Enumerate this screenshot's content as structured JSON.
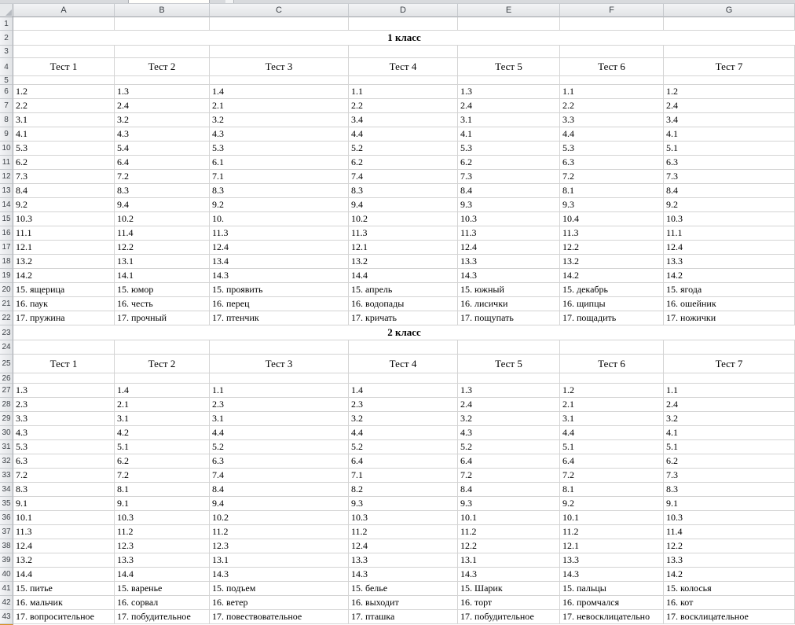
{
  "ui": {
    "selection_orange": "#f0a335",
    "grid_line_color": "#d4d4d4",
    "header_fill": "#e7e9eb"
  },
  "sheet": {
    "column_letters": [
      "A",
      "B",
      "C",
      "D",
      "E",
      "F",
      "G"
    ],
    "visible_rows": "1-43",
    "sections": [
      {
        "title": "1 класс",
        "tests": [
          "Тест 1",
          "Тест 2",
          "Тест 3",
          "Тест 4",
          "Тест 5",
          "Тест 6",
          "Тест 7"
        ],
        "answers": [
          [
            "1.2",
            "2.2",
            "3.1",
            "4.1",
            "5.3",
            "6.2",
            "7.3",
            "8.4",
            "9.2",
            "10.3",
            "11.1",
            "12.1",
            "13.2",
            "14.2",
            "15. ящерица",
            "16. паук",
            "17. пружина"
          ],
          [
            "1.3",
            "2.4",
            "3.2",
            "4.3",
            "5.4",
            "6.4",
            "7.2",
            "8.3",
            "9.4",
            "10.2",
            "11.4",
            "12.2",
            "13.1",
            "14.1",
            "15. юмор",
            "16. честь",
            "17. прочный"
          ],
          [
            "1.4",
            "2.1",
            "3.2",
            "4.3",
            "5.3",
            "6.1",
            "7.1",
            "8.3",
            "9.2",
            "10.",
            "11.3",
            "12.4",
            "13.4",
            "14.3",
            "15. проявить",
            "16. перец",
            "17. птенчик"
          ],
          [
            "1.1",
            "2.2",
            "3.4",
            "4.4",
            "5.2",
            "6.2",
            "7.4",
            "8.3",
            "9.4",
            "10.2",
            "11.3",
            "12.1",
            "13.2",
            "14.4",
            "15. апрель",
            "16. водопады",
            "17. кричать"
          ],
          [
            "1.3",
            "2.4",
            "3.1",
            "4.1",
            "5.3",
            "6.2",
            "7.3",
            "8.4",
            "9.3",
            "10.3",
            "11.3",
            "12.4",
            "13.3",
            "14.3",
            "15. южный",
            "16. лисички",
            "17. пощупать"
          ],
          [
            "1.1",
            "2.2",
            "3.3",
            "4.4",
            "5.3",
            "6.3",
            "7.2",
            "8.1",
            "9.3",
            "10.4",
            "11.3",
            "12.2",
            "13.2",
            "14.2",
            "15. декабрь",
            "16. щипцы",
            "17. пощадить"
          ],
          [
            "1.2",
            "2.4",
            "3.4",
            "4.1",
            "5.1",
            "6.3",
            "7.3",
            "8.4",
            "9.2",
            "10.3",
            "11.1",
            "12.4",
            "13.3",
            "14.2",
            "15. ягода",
            "16. ошейник",
            "17. ножички"
          ]
        ]
      },
      {
        "title": "2 класс",
        "tests": [
          "Тест 1",
          "Тест 2",
          "Тест 3",
          "Тест 4",
          "Тест 5",
          "Тест 6",
          "Тест 7"
        ],
        "answers": [
          [
            "1.3",
            "2.3",
            "3.3",
            "4.3",
            "5.3",
            "6.3",
            "7.2",
            "8.3",
            "9.1",
            "10.1",
            "11.3",
            "12.4",
            "13.2",
            "14.4",
            "15. питье",
            "16. мальчик",
            "17. вопросительное"
          ],
          [
            "1.4",
            "2.1",
            "3.1",
            "4.2",
            "5.1",
            "6.2",
            "7.2",
            "8.1",
            "9.1",
            "10.3",
            "11.2",
            "12.3",
            "13.3",
            "14.4",
            "15. варенье",
            "16. сорвал",
            "17. побудительное"
          ],
          [
            "1.1",
            "2.3",
            "3.1",
            "4.4",
            "5.2",
            "6.3",
            "7.4",
            "8.4",
            "9.4",
            "10.2",
            "11.2",
            "12.3",
            "13.1",
            "14.3",
            "15. подъем",
            "16. ветер",
            "17. повествовательное"
          ],
          [
            "1.4",
            "2.3",
            "3.2",
            "4.4",
            "5.2",
            "6.4",
            "7.1",
            "8.2",
            "9.3",
            "10.3",
            "11.2",
            "12.4",
            "13.3",
            "14.3",
            "15. белье",
            "16. выходит",
            "17. пташка"
          ],
          [
            "1.3",
            "2.4",
            "3.2",
            "4.3",
            "5.2",
            "6.4",
            "7.2",
            "8.4",
            "9.3",
            "10.1",
            "11.2",
            "12.2",
            "13.1",
            "14.3",
            "15. Шарик",
            "16. торт",
            "17. побудительное"
          ],
          [
            "1.2",
            "2.1",
            "3.1",
            "4.4",
            "5.1",
            "6.4",
            "7.2",
            "8.1",
            "9.2",
            "10.1",
            "11.2",
            "12.1",
            "13.3",
            "14.3",
            "15. пальцы",
            "16. промчался",
            "17. невосклицательно"
          ],
          [
            "1.1",
            "2.4",
            "3.2",
            "4.1",
            "5.1",
            "6.2",
            "7.3",
            "8.3",
            "9.1",
            "10.3",
            "11.4",
            "12.2",
            "13.3",
            "14.2",
            "15. колосья",
            "16. кот",
            "17. восклицательное"
          ]
        ]
      }
    ]
  }
}
